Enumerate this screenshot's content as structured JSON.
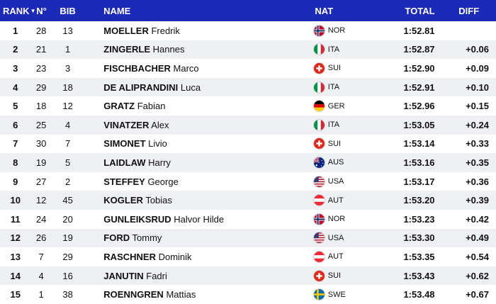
{
  "header": {
    "rank": "RANK",
    "sort_glyph": "▼",
    "num": "N°",
    "bib": "BIB",
    "name": "NAME",
    "nat": "NAT",
    "total": "TOTAL",
    "diff": "DIFF"
  },
  "colors": {
    "header_bg": "#1b2bb8",
    "row_alt_bg": "#eef0f4"
  },
  "rows": [
    {
      "rank": "1",
      "num": "28",
      "bib": "13",
      "last": "MOELLER",
      "first": "Fredrik",
      "nat": "NOR",
      "flag": "norway-flag-icon",
      "total": "1:52.81",
      "diff": ""
    },
    {
      "rank": "2",
      "num": "21",
      "bib": "1",
      "last": "ZINGERLE",
      "first": "Hannes",
      "nat": "ITA",
      "flag": "italy-flag-icon",
      "total": "1:52.87",
      "diff": "+0.06"
    },
    {
      "rank": "3",
      "num": "23",
      "bib": "3",
      "last": "FISCHBACHER",
      "first": "Marco",
      "nat": "SUI",
      "flag": "switzerland-flag-icon",
      "total": "1:52.90",
      "diff": "+0.09"
    },
    {
      "rank": "4",
      "num": "29",
      "bib": "18",
      "last": "DE ALIPRANDINI",
      "first": "Luca",
      "nat": "ITA",
      "flag": "italy-flag-icon",
      "total": "1:52.91",
      "diff": "+0.10"
    },
    {
      "rank": "5",
      "num": "18",
      "bib": "12",
      "last": "GRATZ",
      "first": "Fabian",
      "nat": "GER",
      "flag": "germany-flag-icon",
      "total": "1:52.96",
      "diff": "+0.15"
    },
    {
      "rank": "6",
      "num": "25",
      "bib": "4",
      "last": "VINATZER",
      "first": "Alex",
      "nat": "ITA",
      "flag": "italy-flag-icon",
      "total": "1:53.05",
      "diff": "+0.24"
    },
    {
      "rank": "7",
      "num": "30",
      "bib": "7",
      "last": "SIMONET",
      "first": "Livio",
      "nat": "SUI",
      "flag": "switzerland-flag-icon",
      "total": "1:53.14",
      "diff": "+0.33"
    },
    {
      "rank": "8",
      "num": "19",
      "bib": "5",
      "last": "LAIDLAW",
      "first": "Harry",
      "nat": "AUS",
      "flag": "australia-flag-icon",
      "total": "1:53.16",
      "diff": "+0.35"
    },
    {
      "rank": "9",
      "num": "27",
      "bib": "2",
      "last": "STEFFEY",
      "first": "George",
      "nat": "USA",
      "flag": "usa-flag-icon",
      "total": "1:53.17",
      "diff": "+0.36"
    },
    {
      "rank": "10",
      "num": "12",
      "bib": "45",
      "last": "KOGLER",
      "first": "Tobias",
      "nat": "AUT",
      "flag": "austria-flag-icon",
      "total": "1:53.20",
      "diff": "+0.39"
    },
    {
      "rank": "11",
      "num": "24",
      "bib": "20",
      "last": "GUNLEIKSRUD",
      "first": "Halvor Hilde",
      "nat": "NOR",
      "flag": "norway-flag-icon",
      "total": "1:53.23",
      "diff": "+0.42"
    },
    {
      "rank": "12",
      "num": "26",
      "bib": "19",
      "last": "FORD",
      "first": "Tommy",
      "nat": "USA",
      "flag": "usa-flag-icon",
      "total": "1:53.30",
      "diff": "+0.49"
    },
    {
      "rank": "13",
      "num": "7",
      "bib": "29",
      "last": "RASCHNER",
      "first": "Dominik",
      "nat": "AUT",
      "flag": "austria-flag-icon",
      "total": "1:53.35",
      "diff": "+0.54"
    },
    {
      "rank": "14",
      "num": "4",
      "bib": "16",
      "last": "JANUTIN",
      "first": "Fadri",
      "nat": "SUI",
      "flag": "switzerland-flag-icon",
      "total": "1:53.43",
      "diff": "+0.62"
    },
    {
      "rank": "15",
      "num": "1",
      "bib": "38",
      "last": "ROENNGREN",
      "first": "Mattias",
      "nat": "SWE",
      "flag": "sweden-flag-icon",
      "total": "1:53.48",
      "diff": "+0.67"
    }
  ]
}
